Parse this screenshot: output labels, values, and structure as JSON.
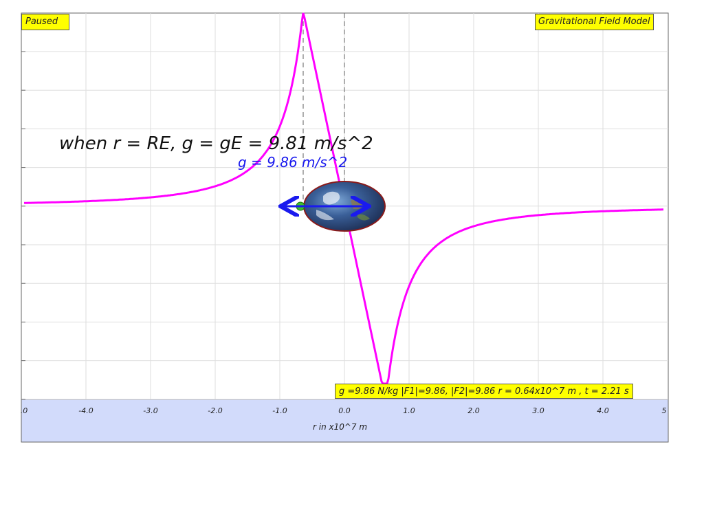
{
  "window": {
    "status": "Paused",
    "title": "Gravitational Field Model"
  },
  "annotations": {
    "main_note": "when r = RE, g = gE = 9.81 m/s^2",
    "g_label": "g = 9.86 m/s^2"
  },
  "readout": "g =9.86 N/kg |F1|=9.86, |F2|=9.86 r = 0.64x10^7 m , t = 2.21 s",
  "axis": {
    "xlabel": "r in x10^7 m",
    "ticks": [
      ".0",
      "-4.0",
      "-3.0",
      "-2.0",
      "-1.0",
      "0.0",
      "1.0",
      "2.0",
      "3.0",
      "4.0",
      "5"
    ]
  },
  "colors": {
    "curve": "#ff00ff",
    "arrow": "#1a1aee",
    "axis_panel": "#d2dbfb",
    "grid": "#d8d8d8",
    "label_box": "#ffff00"
  },
  "icons": {
    "earth": "earth-globe-icon",
    "mass": "green-mass-dot-icon"
  }
}
